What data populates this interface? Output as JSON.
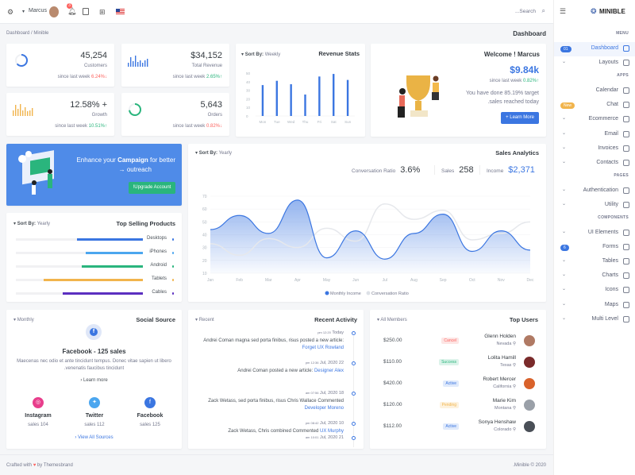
{
  "topbar": {
    "user": "Marcus",
    "notification_count": "3",
    "search_placeholder": "...Search"
  },
  "brand": "MINIBLE",
  "breadcrumb": {
    "items": [
      "Dashboard",
      "Minible"
    ],
    "sep": "/",
    "page_title": "Dashboard"
  },
  "stats": [
    {
      "value": "45,254",
      "label": "Customers",
      "since": "since last week",
      "change": "6.24%",
      "dir": "down",
      "color": "#fd625e"
    },
    {
      "value": "$34,152",
      "label": "Total Revenue",
      "since": "since last week",
      "change": "2.65%",
      "dir": "up",
      "color": "#2ab57d"
    },
    {
      "value": "12.58% +",
      "label": "Growth",
      "since": "since last week",
      "change": "10.51%",
      "dir": "up",
      "color": "#2ab57d"
    },
    {
      "value": "5,643",
      "label": "Orders",
      "since": "since last week",
      "change": "0.82%",
      "dir": "down",
      "color": "#fd625e"
    }
  ],
  "revenue_stats": {
    "title": "Revenue Stats",
    "sort_label": "Sort By:",
    "sort_value": "Weekly",
    "chart_data": {
      "type": "bar",
      "categories": [
        "Mon",
        "Tue",
        "Wed",
        "Thu",
        "Fri",
        "Sat",
        "Sun"
      ],
      "values": [
        36,
        41,
        37,
        25,
        46,
        49,
        42
      ],
      "ylim": [
        0,
        50
      ],
      "yticks": [
        "0",
        "10",
        "20",
        "30",
        "40",
        "50"
      ],
      "color": "#3b76e1"
    }
  },
  "welcome": {
    "title": "Welcome ! Marcus",
    "amount": "$9.84k",
    "since": "since last week",
    "change": "0.82%",
    "text1": "You have done 85.19% target",
    "text2": ".sales reached today",
    "button": "Learn More"
  },
  "campaign": {
    "text_pre": "Enhance your",
    "text_bold": "Campaign",
    "text_post": "for better",
    "text_line2": "outreach",
    "button": "!Upgrade Account"
  },
  "sales_analytics": {
    "title": "Sales Analytics",
    "sort_label": "Sort By:",
    "sort_value": "Yearly",
    "metrics": [
      {
        "label": "Conversation Ratio",
        "value": "3.6%"
      },
      {
        "label": "Sales",
        "value": "258"
      },
      {
        "label": "Income",
        "value": "$2,371"
      }
    ],
    "chart_data": {
      "type": "area",
      "x": [
        "Jan",
        "Feb",
        "Mar",
        "Apr",
        "May",
        "Jun",
        "Jul",
        "Aug",
        "Sep",
        "Oct",
        "Nov",
        "Dec"
      ],
      "ylim": [
        10,
        70
      ],
      "yticks": [
        "10",
        "20",
        "30",
        "40",
        "50",
        "60",
        "70"
      ],
      "series": [
        {
          "name": "Monthly Income",
          "values": [
            44,
            55,
            41,
            67,
            22,
            43,
            21,
            41,
            56,
            27,
            43,
            28
          ],
          "color": "#3b76e1"
        },
        {
          "name": "Conversation Ratio",
          "values": [
            33,
            24,
            37,
            30,
            45,
            35,
            64,
            52,
            59,
            36,
            41,
            50
          ],
          "color": "#e6e8ec"
        }
      ],
      "legend": "bottom",
      "grid": true
    }
  },
  "top_products": {
    "title": "Top Selling Products",
    "sort_label": "Sort By:",
    "sort_value": "Yearly",
    "items": [
      {
        "name": "Desktops",
        "pct": 52,
        "color": "#3b76e1"
      },
      {
        "name": "iPhones",
        "pct": 45,
        "color": "#4ba6ef"
      },
      {
        "name": "Android",
        "pct": 48,
        "color": "#2ab57d"
      },
      {
        "name": "Tablets",
        "pct": 78,
        "color": "#f1b44c"
      },
      {
        "name": "Cables",
        "pct": 63,
        "color": "#5b2fc0"
      }
    ]
  },
  "social": {
    "title": "Social Source",
    "filter": "Monthly",
    "headline": "Facebook - 125 sales",
    "desc1": "Maecenas nec odio et ante tincidunt tempus. Donec vitae sapien ut libero",
    "desc2": ".venenatis faucibus tincidunt",
    "learn_more": "Learn more",
    "view_all": "View All Sources",
    "sources": [
      {
        "name": "Instagram",
        "sales": "sales 104",
        "color": "#e83e8c"
      },
      {
        "name": "Twitter",
        "sales": "sales 112",
        "color": "#4ba6ef"
      },
      {
        "name": "Facebook",
        "sales": "sales 125",
        "color": "#3b76e1"
      }
    ]
  },
  "activity": {
    "title": "Recent Activity",
    "filter": "Recent",
    "items": [
      {
        "time": "pm 12:20",
        "date": "Today",
        "text": "Andrei Coman magna sed porta finibus, risus posted a new article:",
        "link": "Forget UX Rowland"
      },
      {
        "time": "pm 12:36",
        "date": "Jul, 2020 22",
        "text": "Andrei Coman posted a new article:",
        "link": "Designer Alex"
      },
      {
        "time": "am 07:56",
        "date": "Jul, 2020 18",
        "text": "Zack Wetass, sed porta finibus, risus Chris Wallace Commented",
        "link": "Developer Moreno"
      },
      {
        "time": "pm 08:42",
        "date": "Jul, 2020 10",
        "text": "Zack Wetass, Chris combined Commented",
        "link": "UX Murphy"
      },
      {
        "time": "am 10:01",
        "date": "Jul, 2020 21",
        "text": "",
        "link": ""
      }
    ]
  },
  "top_users": {
    "title": "Top Users",
    "filter": "All Members",
    "items": [
      {
        "name": "Glenn Holden",
        "location": "Nevada",
        "status": "Cancel",
        "amount": "$250.00",
        "sc": "#fd625e",
        "sb": "#fde5e4"
      },
      {
        "name": "Lolita Hamill",
        "location": "Texas",
        "status": "Success",
        "amount": "$110.00",
        "sc": "#2ab57d",
        "sb": "#dcf3ea"
      },
      {
        "name": "Robert Mercer",
        "location": "California",
        "status": "Active",
        "amount": "$420.00",
        "sc": "#3b76e1",
        "sb": "#e0eafb"
      },
      {
        "name": "Marie Kim",
        "location": "Montana",
        "status": "Pending",
        "amount": "$120.00",
        "sc": "#f1b44c",
        "sb": "#fdf2de"
      },
      {
        "name": "Sonya Henshaw",
        "location": "Colorado",
        "status": "Active",
        "amount": "$112.00",
        "sc": "#3b76e1",
        "sb": "#e0eafb"
      }
    ]
  },
  "footer": {
    "left_pre": "Crafted with",
    "left_post": "by Themesbrand",
    "right": ".Minible © 2020"
  },
  "sidebar": [
    {
      "type": "head",
      "label": "MENU"
    },
    {
      "type": "item",
      "label": "Dashboard",
      "icon": "home-icon",
      "badge": "01",
      "badge_color": "#3b76e1",
      "active": true
    },
    {
      "type": "item",
      "label": "Layouts",
      "icon": "layout-icon",
      "chev": true
    },
    {
      "type": "head",
      "label": "APPS"
    },
    {
      "type": "item",
      "label": "Calendar",
      "icon": "calendar-icon"
    },
    {
      "type": "item",
      "label": "Chat",
      "icon": "chat-icon",
      "badge": "New",
      "badge_color": "#f1b44c"
    },
    {
      "type": "item",
      "label": "Ecommerce",
      "icon": "shop-icon",
      "chev": true
    },
    {
      "type": "item",
      "label": "Email",
      "icon": "mail-icon",
      "chev": true
    },
    {
      "type": "item",
      "label": "Invoices",
      "icon": "invoice-icon",
      "chev": true
    },
    {
      "type": "item",
      "label": "Contacts",
      "icon": "contacts-icon",
      "chev": true
    },
    {
      "type": "head",
      "label": "PAGES"
    },
    {
      "type": "item",
      "label": "Authentication",
      "icon": "auth-icon",
      "chev": true
    },
    {
      "type": "item",
      "label": "Utility",
      "icon": "utility-icon",
      "chev": true
    },
    {
      "type": "head",
      "label": "COMPONENTS"
    },
    {
      "type": "item",
      "label": "UI Elements",
      "icon": "ui-elements-icon",
      "chev": true
    },
    {
      "type": "item",
      "label": "Forms",
      "icon": "forms-icon",
      "badge": "6",
      "badge_color": "#3b76e1"
    },
    {
      "type": "item",
      "label": "Tables",
      "icon": "tables-icon",
      "chev": true
    },
    {
      "type": "item",
      "label": "Charts",
      "icon": "charts-icon",
      "chev": true
    },
    {
      "type": "item",
      "label": "Icons",
      "icon": "icons-icon",
      "chev": true
    },
    {
      "type": "item",
      "label": "Maps",
      "icon": "maps-icon",
      "chev": true
    },
    {
      "type": "item",
      "label": "Multi Level",
      "icon": "share-icon",
      "chev": true
    }
  ]
}
